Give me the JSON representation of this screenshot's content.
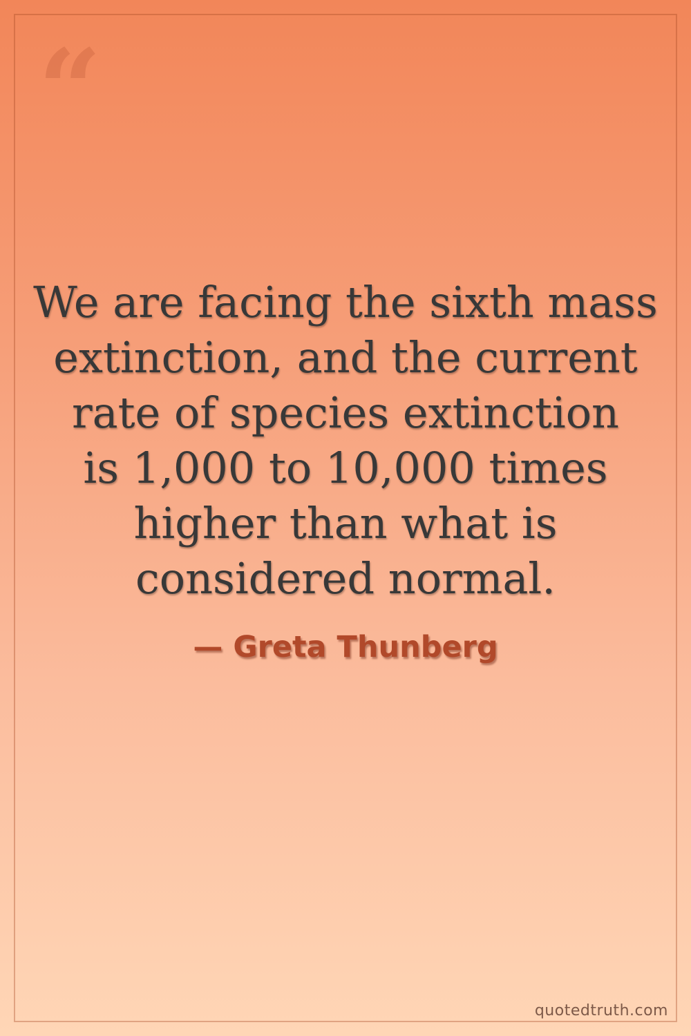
{
  "page": {
    "background_top": "#f28659",
    "background_bottom": "#ffd6b6",
    "frame_color": "rgba(167, 72, 35, 0.35)"
  },
  "quote": {
    "mark": "“",
    "lines": [
      "We are facing the sixth mass",
      "extinction, and the current",
      "rate of species extinction",
      "is 1,000 to 10,000 times",
      "higher than what is",
      "considered normal."
    ],
    "color": "#383838"
  },
  "attribution": {
    "label": "— Greta Thunberg",
    "color": "#b1492a"
  },
  "watermark": {
    "text": "quotedtruth.com",
    "color": "#7d5948"
  }
}
